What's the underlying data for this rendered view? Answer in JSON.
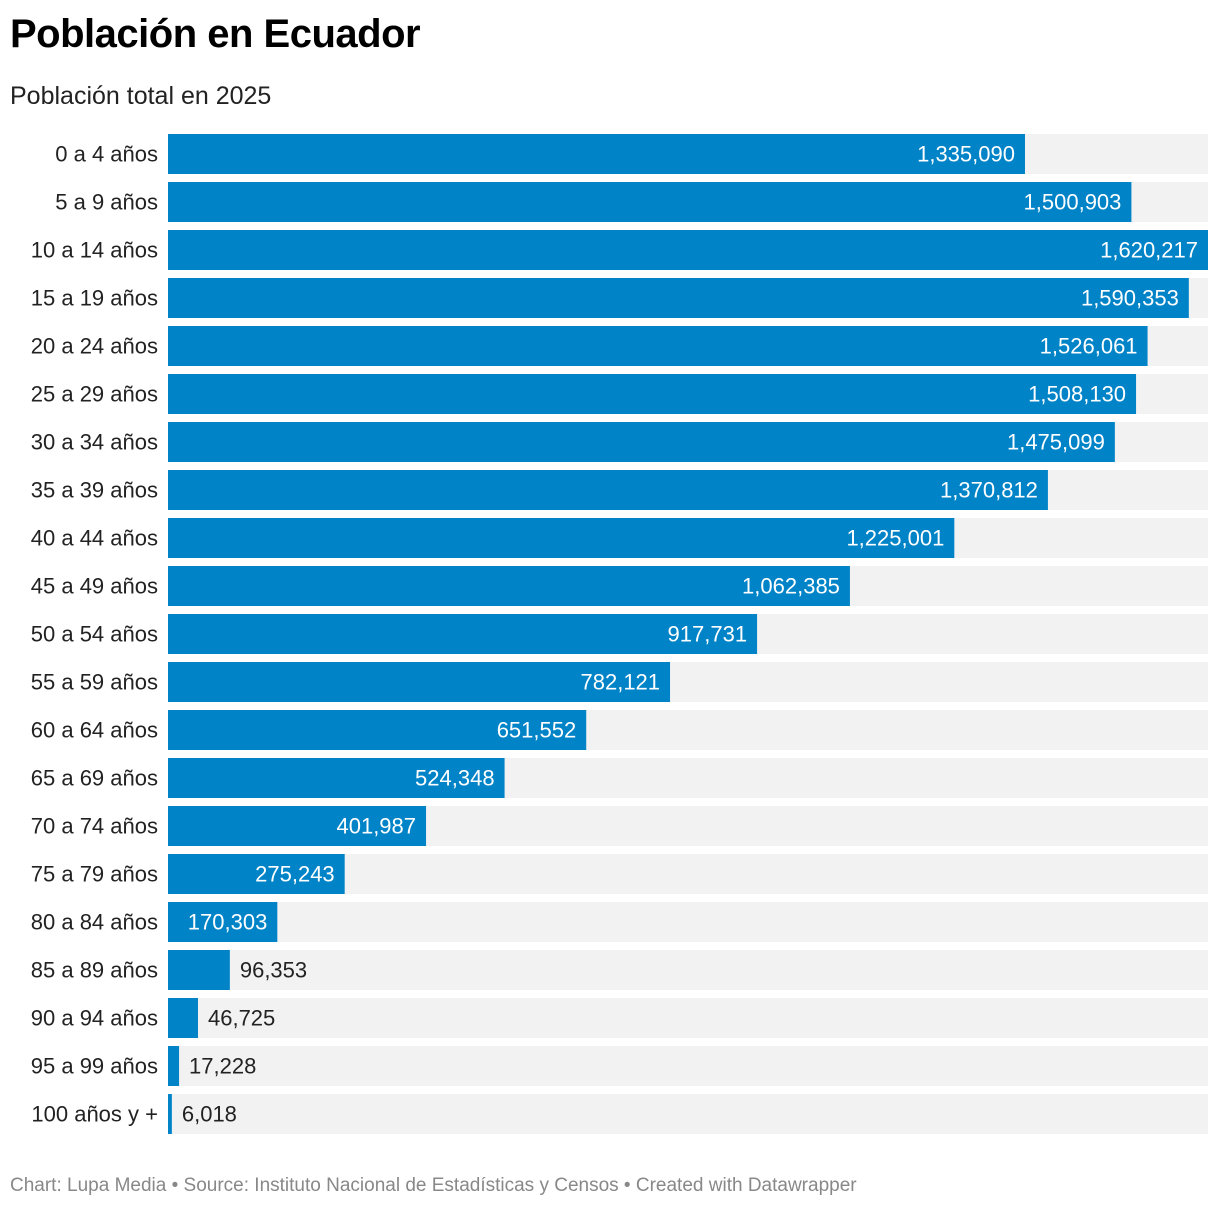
{
  "header": {
    "title": "Población en Ecuador",
    "subtitle": "Población total en 2025"
  },
  "footer": {
    "chart_credit": "Chart: Lupa Media",
    "separator": " • ",
    "source": "Source: Instituto Nacional de Estadísticas y Censos",
    "created_with": "Created with Datawrapper"
  },
  "colors": {
    "bar": "#0083c7",
    "track": "#f2f2f2",
    "value_inside": "#ffffff",
    "value_outside": "#222222"
  },
  "chart_data": {
    "type": "bar",
    "orientation": "horizontal",
    "title": "Población en Ecuador",
    "subtitle": "Población total en 2025",
    "xlabel": "",
    "ylabel": "",
    "xlim": [
      0,
      1620217
    ],
    "grid": false,
    "categories": [
      "0 a 4 años",
      "5 a 9 años",
      "10 a 14 años",
      "15 a 19 años",
      "20 a 24 años",
      "25 a 29 años",
      "30 a 34 años",
      "35 a 39 años",
      "40 a 44 años",
      "45 a 49 años",
      "50 a 54 años",
      "55 a 59 años",
      "60 a 64 años",
      "65 a 69 años",
      "70 a 74 años",
      "75 a 79 años",
      "80 a 84 años",
      "85 a 89 años",
      "90 a 94 años",
      "95 a 99 años",
      "100 años y +"
    ],
    "values": [
      1335090,
      1500903,
      1620217,
      1590353,
      1526061,
      1508130,
      1475099,
      1370812,
      1225001,
      1062385,
      917731,
      782121,
      651552,
      524348,
      401987,
      275243,
      170303,
      96353,
      46725,
      17228,
      6018
    ],
    "value_labels": [
      "1,335,090",
      "1,500,903",
      "1,620,217",
      "1,590,353",
      "1,526,061",
      "1,508,130",
      "1,475,099",
      "1,370,812",
      "1,225,001",
      "1,062,385",
      "917,731",
      "782,121",
      "651,552",
      "524,348",
      "401,987",
      "275,243",
      "170,303",
      "96,353",
      "46,725",
      "17,228",
      "6,018"
    ]
  }
}
